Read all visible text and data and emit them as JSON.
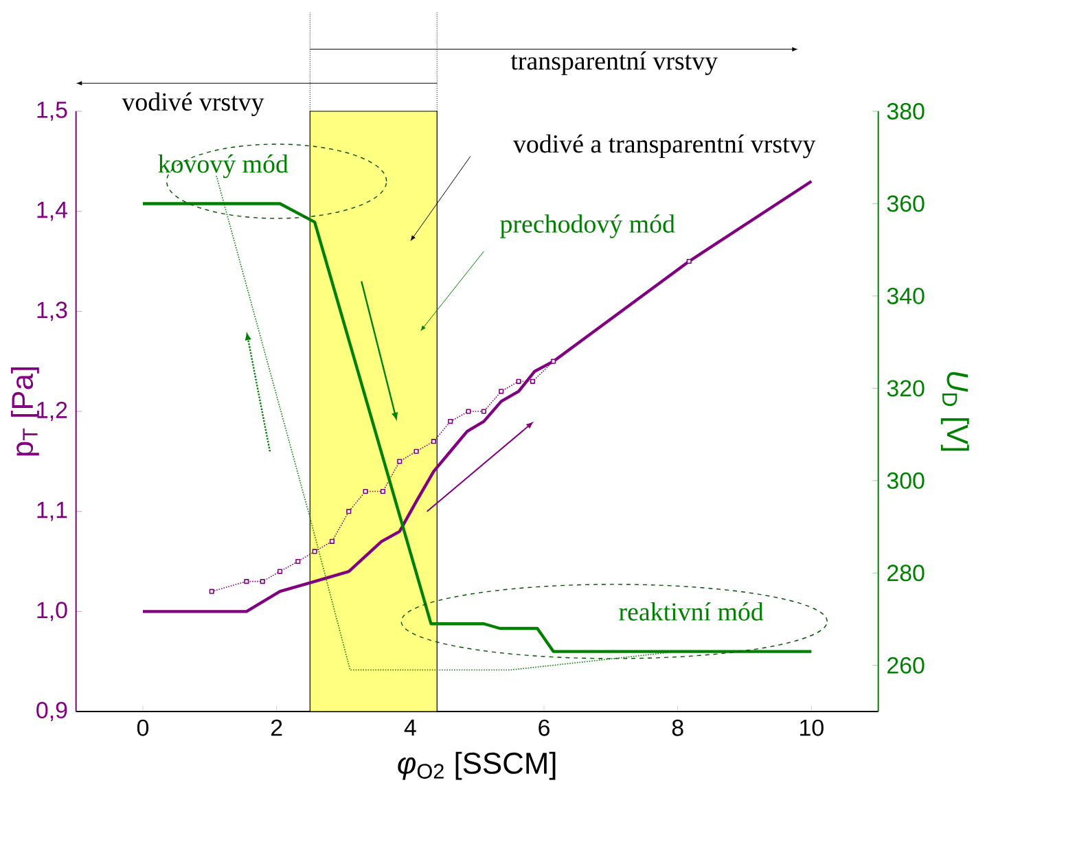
{
  "chart_data": {
    "type": "line",
    "xlabel": "*φ*$_{O2}$ [SSCM]",
    "ylabel": "p$_{T}$ [Pa]",
    "y2label": "*U*$_{D}$ [V]",
    "xlim": [
      -1,
      11
    ],
    "xticks": [
      0,
      2,
      4,
      6,
      8,
      10
    ],
    "ylim": [
      0.9,
      1.5
    ],
    "yticks": [
      {
        "value": 0.9,
        "label": "0,9"
      },
      {
        "value": 1.0,
        "label": "1,0"
      },
      {
        "value": 1.1,
        "label": "1,1"
      },
      {
        "value": 1.2,
        "label": "1,2"
      },
      {
        "value": 1.3,
        "label": "1,3"
      },
      {
        "value": 1.4,
        "label": "1,4"
      },
      {
        "value": 1.5,
        "label": "1,5"
      }
    ],
    "y2lim": [
      250,
      380
    ],
    "y2ticks": [
      260,
      280,
      300,
      320,
      340,
      360,
      380
    ],
    "series": [
      {
        "color": "#800080",
        "line_style": "solid",
        "marker": "none",
        "x": [
          0,
          1,
          1.55,
          2.05,
          2.57,
          3.08,
          3.57,
          3.84,
          4.09,
          4.35,
          4.6,
          4.85,
          5.1,
          5.36,
          5.62,
          5.86,
          6.14,
          8.17,
          10
        ],
        "values": [
          1.0,
          1.0,
          1.0,
          1.02,
          1.03,
          1.04,
          1.07,
          1.08,
          1.11,
          1.14,
          1.16,
          1.18,
          1.19,
          1.21,
          1.22,
          1.24,
          1.25,
          1.35,
          1.43
        ]
      },
      {
        "color": "#800080",
        "line_style": "dotted",
        "marker": "square",
        "x": [
          1.03,
          1.55,
          1.79,
          2.05,
          2.32,
          2.57,
          2.83,
          3.08,
          3.33,
          3.59,
          3.84,
          4.09,
          4.35,
          4.6,
          4.87,
          5.1,
          5.36,
          5.62,
          5.83,
          6.14,
          8.17
        ],
        "values": [
          1.02,
          1.03,
          1.03,
          1.04,
          1.05,
          1.06,
          1.07,
          1.1,
          1.12,
          1.12,
          1.15,
          1.16,
          1.17,
          1.19,
          1.2,
          1.2,
          1.22,
          1.23,
          1.23,
          1.25,
          1.35
        ]
      },
      {
        "color": "#008000",
        "axis": "y2",
        "line_style": "solid",
        "marker": "none",
        "x": [
          0,
          2.05,
          2.57,
          4.31,
          4.66,
          5.1,
          5.34,
          5.9,
          6.14,
          10
        ],
        "values": [
          360,
          360,
          356,
          269,
          269,
          269,
          268,
          268,
          263,
          263
        ]
      },
      {
        "color": "#008000",
        "axis": "y2",
        "line_style": "dotted",
        "marker": "none",
        "x": [
          1.1,
          2.5,
          3.1,
          5.5,
          8
        ],
        "values": [
          366,
          292,
          259,
          259,
          263
        ]
      }
    ],
    "bands": [
      {
        "axis": "x",
        "from": 2.5,
        "to": 4.4,
        "color": "#ffff80"
      }
    ],
    "annotations": [
      "transparentní vrstvy",
      "vodivé vrstvy",
      "vodivé a transparentní vrstvy",
      "kovový mód",
      "prechodový mód",
      "reaktivní mód"
    ]
  }
}
